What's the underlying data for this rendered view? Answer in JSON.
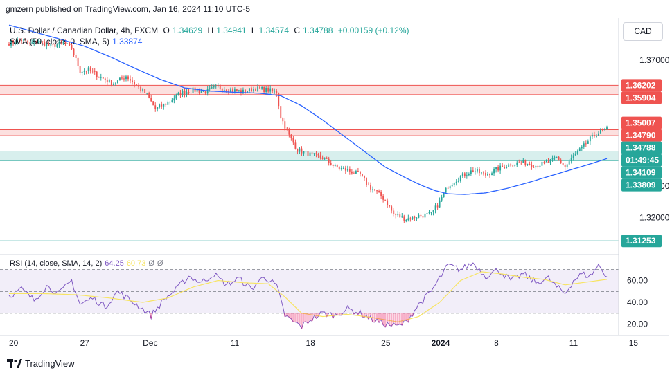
{
  "header": {
    "published": "gmzern published on TradingView.com, Jan 16, 2024 11:10 UTC-5"
  },
  "legend": {
    "symbol": "U.S. Dollar / Canadian Dollar, 4h, FXCM",
    "o_label": "O",
    "o": "1.34629",
    "h_label": "H",
    "h": "1.34941",
    "l_label": "L",
    "l": "1.34574",
    "c_label": "C",
    "c": "1.34788",
    "change": "+0.00159 (+0.12%)",
    "sma_label": "SMA (50, close, 0, SMA, 5)",
    "sma_value": "1.33874",
    "rsi_label": "RSI (14, close, SMA, 14, 2)",
    "rsi_value": "64.25",
    "rsi_sma_value": "60.73",
    "rsi_extra1": "Ø",
    "rsi_extra2": "Ø"
  },
  "currency_button": "CAD",
  "brand": "TradingView",
  "colors": {
    "up": "#26a69a",
    "down": "#ef5350",
    "sma": "#2962ff",
    "rsi": "#7e57c2",
    "rsi_sma": "#f7e463",
    "resistance": "#ef5350",
    "support": "#26a69a"
  },
  "chart_data": {
    "type": "candlestick",
    "price_axis": {
      "ticks": [
        "1.37000",
        "1.33000",
        "1.32000"
      ],
      "range": [
        1.3095,
        1.383
      ]
    },
    "price_labels": [
      {
        "text": "1.36202",
        "value": 1.36202,
        "kind": "resistance"
      },
      {
        "text": "1.35904",
        "value": 1.35904,
        "kind": "resistance"
      },
      {
        "text": "1.35007",
        "value": 1.35007,
        "kind": "resistance"
      },
      {
        "text": "1.34790",
        "value": 1.3479,
        "kind": "resistance"
      },
      {
        "text": "1.34788",
        "value": 1.34788,
        "kind": "last"
      },
      {
        "text": "01:49:45",
        "value": 1.3453,
        "kind": "countdown"
      },
      {
        "text": "1.34109",
        "value": 1.34109,
        "kind": "support"
      },
      {
        "text": "1.33809",
        "value": 1.33809,
        "kind": "support"
      },
      {
        "text": "1.31253",
        "value": 1.31253,
        "kind": "support"
      }
    ],
    "zones": [
      {
        "from": 1.35904,
        "to": 1.36202,
        "kind": "resistance"
      },
      {
        "from": 1.346,
        "to": 1.3479,
        "kind": "resistance"
      },
      {
        "from": 1.33809,
        "to": 1.34109,
        "kind": "support"
      }
    ],
    "lines": [
      {
        "value": 1.31253,
        "kind": "support"
      }
    ],
    "x_axis": {
      "ticks": [
        {
          "label": "20",
          "index": 0
        },
        {
          "label": "27",
          "index": 36
        },
        {
          "label": "Dec",
          "index": 66
        },
        {
          "label": "11",
          "index": 108
        },
        {
          "label": "18",
          "index": 144
        },
        {
          "label": "25",
          "index": 180
        },
        {
          "label": "2024",
          "index": 204
        },
        {
          "label": "8",
          "index": 234
        },
        {
          "label": "11",
          "index": 270
        }
      ],
      "extra_tick": {
        "label": "15",
        "index": 270
      }
    },
    "path_points": [
      [
        0,
        1.3755
      ],
      [
        6,
        1.3765
      ],
      [
        10,
        1.3752
      ],
      [
        14,
        1.376
      ],
      [
        20,
        1.3745
      ],
      [
        26,
        1.3755
      ],
      [
        30,
        1.3738
      ],
      [
        34,
        1.3665
      ],
      [
        38,
        1.367
      ],
      [
        44,
        1.3645
      ],
      [
        50,
        1.3625
      ],
      [
        56,
        1.365
      ],
      [
        60,
        1.3625
      ],
      [
        66,
        1.359
      ],
      [
        70,
        1.3545
      ],
      [
        76,
        1.3565
      ],
      [
        82,
        1.3595
      ],
      [
        88,
        1.3605
      ],
      [
        94,
        1.36
      ],
      [
        100,
        1.3615
      ],
      [
        106,
        1.3605
      ],
      [
        112,
        1.36
      ],
      [
        118,
        1.361
      ],
      [
        124,
        1.3605
      ],
      [
        128,
        1.3598
      ],
      [
        130,
        1.352
      ],
      [
        134,
        1.346
      ],
      [
        138,
        1.3415
      ],
      [
        144,
        1.34
      ],
      [
        150,
        1.339
      ],
      [
        156,
        1.336
      ],
      [
        162,
        1.335
      ],
      [
        168,
        1.3335
      ],
      [
        172,
        1.33
      ],
      [
        176,
        1.328
      ],
      [
        180,
        1.3255
      ],
      [
        184,
        1.321
      ],
      [
        190,
        1.3195
      ],
      [
        196,
        1.3205
      ],
      [
        202,
        1.321
      ],
      [
        206,
        1.325
      ],
      [
        210,
        1.33
      ],
      [
        216,
        1.333
      ],
      [
        222,
        1.335
      ],
      [
        228,
        1.3335
      ],
      [
        234,
        1.3355
      ],
      [
        240,
        1.337
      ],
      [
        246,
        1.3375
      ],
      [
        252,
        1.3365
      ],
      [
        258,
        1.3375
      ],
      [
        262,
        1.339
      ],
      [
        266,
        1.336
      ],
      [
        270,
        1.3395
      ],
      [
        274,
        1.342
      ],
      [
        278,
        1.345
      ],
      [
        282,
        1.347
      ],
      [
        286,
        1.3479
      ]
    ],
    "sma_points": [
      [
        0,
        1.3812
      ],
      [
        12,
        1.379
      ],
      [
        24,
        1.3768
      ],
      [
        36,
        1.3745
      ],
      [
        48,
        1.3712
      ],
      [
        60,
        1.3675
      ],
      [
        72,
        1.364
      ],
      [
        84,
        1.3612
      ],
      [
        96,
        1.3602
      ],
      [
        108,
        1.3598
      ],
      [
        120,
        1.3595
      ],
      [
        130,
        1.3587
      ],
      [
        140,
        1.3555
      ],
      [
        150,
        1.351
      ],
      [
        160,
        1.346
      ],
      [
        170,
        1.341
      ],
      [
        180,
        1.336
      ],
      [
        190,
        1.3325
      ],
      [
        198,
        1.33
      ],
      [
        204,
        1.3285
      ],
      [
        210,
        1.3275
      ],
      [
        218,
        1.3273
      ],
      [
        228,
        1.3278
      ],
      [
        238,
        1.3292
      ],
      [
        248,
        1.331
      ],
      [
        258,
        1.333
      ],
      [
        268,
        1.335
      ],
      [
        278,
        1.337
      ],
      [
        286,
        1.3387
      ]
    ],
    "rsi": {
      "ticks": [
        "60.00",
        "40.00",
        "20.00"
      ],
      "range": [
        14,
        80
      ],
      "levels": [
        70,
        50,
        30
      ],
      "points": [
        [
          0,
          46
        ],
        [
          6,
          52
        ],
        [
          12,
          42
        ],
        [
          18,
          55
        ],
        [
          24,
          48
        ],
        [
          30,
          60
        ],
        [
          34,
          38
        ],
        [
          40,
          44
        ],
        [
          46,
          36
        ],
        [
          52,
          50
        ],
        [
          58,
          42
        ],
        [
          64,
          34
        ],
        [
          68,
          28
        ],
        [
          74,
          42
        ],
        [
          80,
          52
        ],
        [
          86,
          64
        ],
        [
          92,
          58
        ],
        [
          98,
          66
        ],
        [
          104,
          56
        ],
        [
          110,
          62
        ],
        [
          116,
          52
        ],
        [
          122,
          64
        ],
        [
          128,
          55
        ],
        [
          132,
          28
        ],
        [
          136,
          22
        ],
        [
          140,
          18
        ],
        [
          144,
          24
        ],
        [
          150,
          30
        ],
        [
          156,
          28
        ],
        [
          162,
          34
        ],
        [
          168,
          30
        ],
        [
          174,
          24
        ],
        [
          180,
          20
        ],
        [
          186,
          18
        ],
        [
          190,
          22
        ],
        [
          196,
          38
        ],
        [
          202,
          50
        ],
        [
          206,
          62
        ],
        [
          210,
          74
        ],
        [
          216,
          70
        ],
        [
          222,
          76
        ],
        [
          228,
          64
        ],
        [
          234,
          70
        ],
        [
          240,
          60
        ],
        [
          246,
          66
        ],
        [
          252,
          58
        ],
        [
          258,
          62
        ],
        [
          262,
          54
        ],
        [
          266,
          48
        ],
        [
          270,
          60
        ],
        [
          274,
          66
        ],
        [
          278,
          64
        ],
        [
          282,
          74
        ],
        [
          286,
          64
        ]
      ],
      "sma_points": [
        [
          0,
          48
        ],
        [
          16,
          48
        ],
        [
          32,
          47
        ],
        [
          48,
          44
        ],
        [
          64,
          40
        ],
        [
          76,
          44
        ],
        [
          88,
          54
        ],
        [
          100,
          60
        ],
        [
          112,
          58
        ],
        [
          124,
          57
        ],
        [
          132,
          45
        ],
        [
          140,
          30
        ],
        [
          150,
          27
        ],
        [
          162,
          29
        ],
        [
          174,
          26
        ],
        [
          186,
          22
        ],
        [
          196,
          27
        ],
        [
          206,
          40
        ],
        [
          216,
          60
        ],
        [
          226,
          68
        ],
        [
          236,
          66
        ],
        [
          246,
          63
        ],
        [
          256,
          61
        ],
        [
          266,
          56
        ],
        [
          274,
          58
        ],
        [
          286,
          61
        ]
      ]
    }
  }
}
